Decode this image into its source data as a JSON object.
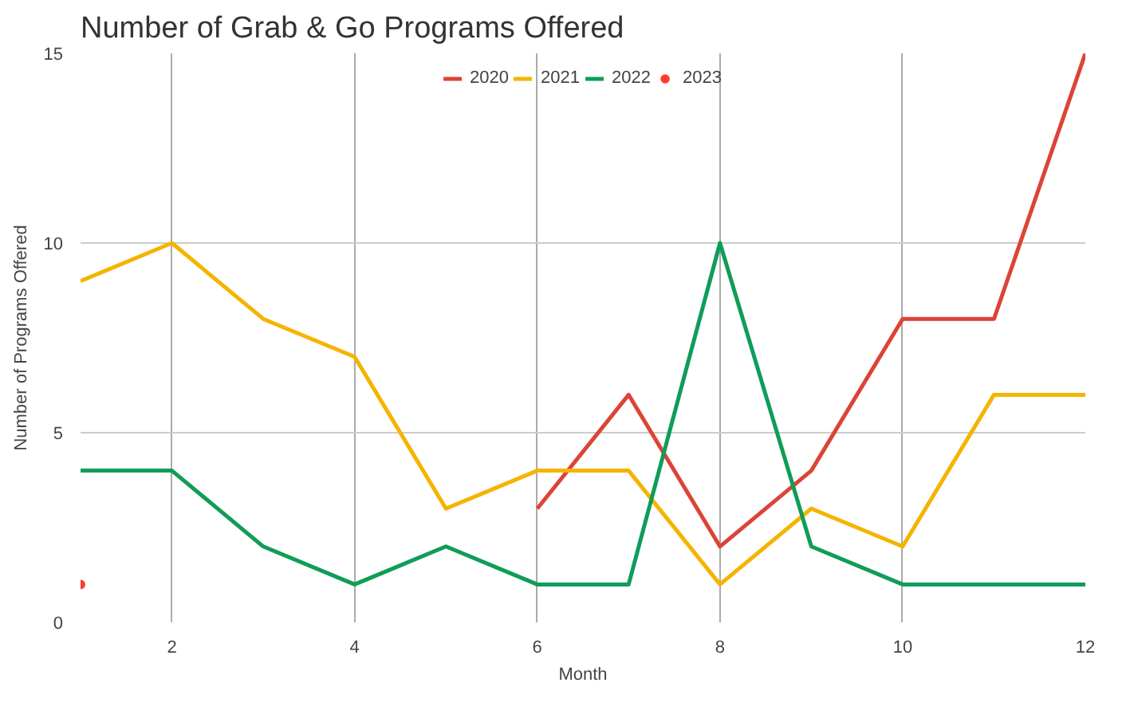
{
  "chart_data": {
    "type": "line",
    "title": "Number of Grab & Go Programs Offered",
    "xlabel": "Month",
    "ylabel": "Number of Programs Offered",
    "xlim": [
      1,
      12
    ],
    "xticks": [
      2,
      4,
      6,
      8,
      10,
      12
    ],
    "ylim": [
      0,
      15
    ],
    "yticks": [
      0,
      5,
      10,
      15
    ],
    "grid": true,
    "legend": "top",
    "marker": "none",
    "series": [
      {
        "name": "2020",
        "color": "#db4437",
        "x": [
          6,
          7,
          8,
          9,
          10,
          11,
          12
        ],
        "values": [
          3,
          6,
          2,
          4,
          8,
          8,
          15
        ]
      },
      {
        "name": "2021",
        "color": "#f4b400",
        "x": [
          1,
          2,
          3,
          4,
          5,
          6,
          7,
          8,
          9,
          10,
          11,
          12
        ],
        "values": [
          9,
          10,
          8,
          7,
          3,
          4,
          4,
          1,
          3,
          2,
          6,
          6
        ]
      },
      {
        "name": "2022",
        "color": "#0f9d58",
        "x": [
          1,
          2,
          3,
          4,
          5,
          6,
          7,
          8,
          9,
          10,
          11,
          12
        ],
        "values": [
          4,
          4,
          2,
          1,
          2,
          1,
          1,
          10,
          2,
          1,
          1,
          1
        ]
      },
      {
        "name": "2023",
        "color": "#ff3d2e",
        "type": "scatter",
        "marker": "circle",
        "x": [
          1
        ],
        "values": [
          1
        ]
      }
    ]
  }
}
